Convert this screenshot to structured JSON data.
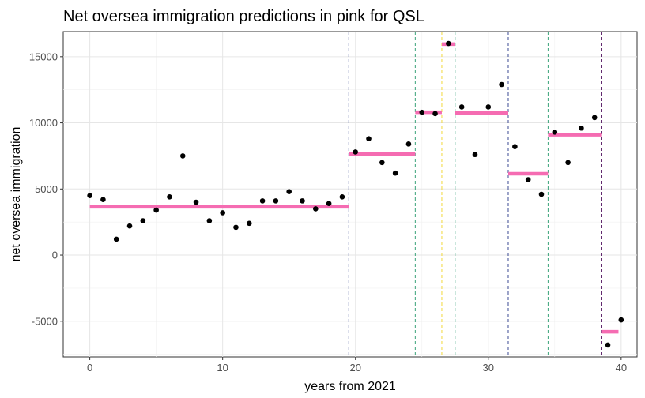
{
  "chart_data": {
    "type": "scatter",
    "title": "Net oversea immigration predictions in pink for QSL",
    "xlabel": "years from 2021",
    "ylabel": "net oversea immigration",
    "xlim": [
      -2,
      41.2
    ],
    "ylim": [
      -7700,
      16900
    ],
    "x_ticks": [
      0,
      10,
      20,
      30,
      40
    ],
    "x_tick_labels": [
      "0",
      "10",
      "20",
      "30",
      "40"
    ],
    "y_ticks": [
      -5000,
      0,
      5000,
      10000,
      15000
    ],
    "y_tick_labels": [
      "-5000",
      "0",
      "5000",
      "10000",
      "15000"
    ],
    "grid": true,
    "points": {
      "color": "#000000",
      "x": [
        0,
        1,
        2,
        3,
        4,
        5,
        6,
        7,
        8,
        9,
        10,
        11,
        12,
        13,
        14,
        15,
        16,
        17,
        18,
        19,
        20,
        21,
        22,
        23,
        24,
        25,
        26,
        27,
        28,
        29,
        30,
        31,
        32,
        33,
        34,
        35,
        36,
        37,
        38,
        39,
        40
      ],
      "y": [
        4500,
        4200,
        1200,
        2200,
        2600,
        3400,
        4400,
        7500,
        4000,
        2600,
        3200,
        2100,
        2400,
        4100,
        4100,
        4800,
        4100,
        3500,
        3900,
        4400,
        7800,
        8800,
        7000,
        6200,
        8400,
        10800,
        10700,
        16000,
        11200,
        7600,
        11200,
        12900,
        8200,
        5700,
        4600,
        9300,
        7000,
        9600,
        10400,
        -6800,
        -4900
      ]
    },
    "predictions": {
      "color": "#f56cb2",
      "segments": [
        {
          "x_start": 0,
          "x_end": 19.5,
          "y": 3650
        },
        {
          "x_start": 19.5,
          "x_end": 24.5,
          "y": 7650
        },
        {
          "x_start": 24.5,
          "x_end": 26.5,
          "y": 10800
        },
        {
          "x_start": 26.5,
          "x_end": 27.5,
          "y": 15950
        },
        {
          "x_start": 27.5,
          "x_end": 31.5,
          "y": 10750
        },
        {
          "x_start": 31.5,
          "x_end": 34.5,
          "y": 6150
        },
        {
          "x_start": 34.5,
          "x_end": 38.5,
          "y": 9100
        },
        {
          "x_start": 38.5,
          "x_end": 39.8,
          "y": -5800
        }
      ]
    },
    "change_lines": [
      {
        "x": 19.5,
        "color": "#3b4a93"
      },
      {
        "x": 24.5,
        "color": "#3aa37a"
      },
      {
        "x": 26.5,
        "color": "#f2d83a"
      },
      {
        "x": 27.5,
        "color": "#3aa37a"
      },
      {
        "x": 31.5,
        "color": "#3b4a93"
      },
      {
        "x": 34.5,
        "color": "#3aa37a"
      },
      {
        "x": 38.5,
        "color": "#4b0b5a"
      }
    ]
  }
}
